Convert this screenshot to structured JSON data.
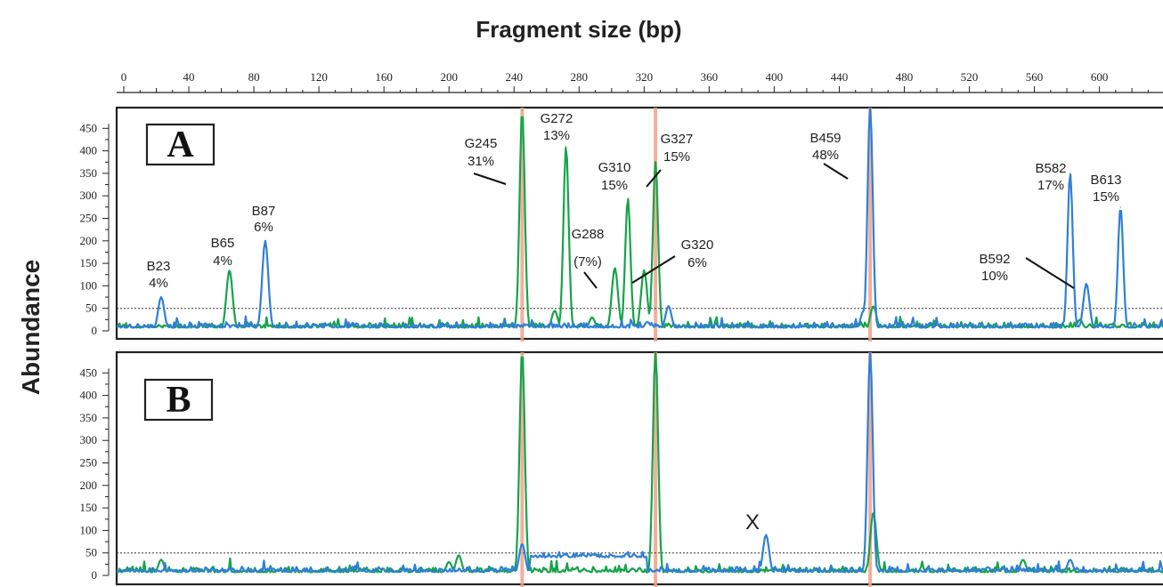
{
  "colors": {
    "blue_series": "#2f7fd6",
    "green_series": "#16a34a",
    "marker_lines": "#f2a18a",
    "threshold_line": "#333333",
    "frame": "#222222"
  },
  "chart_data": {
    "type": "line",
    "title": "Fragment size (bp)",
    "ylabel": "Abundance",
    "xlim": [
      0,
      650
    ],
    "x_ticks": [
      0,
      40,
      80,
      120,
      160,
      200,
      240,
      280,
      320,
      360,
      400,
      440,
      480,
      520,
      560,
      600
    ],
    "x_tick_labels": [
      "0",
      "40",
      "80",
      "120",
      "160",
      "200",
      "240",
      "280",
      "320",
      "360",
      "400",
      "440",
      "480",
      "520",
      "560",
      "600"
    ],
    "ylim": [
      0,
      500
    ],
    "y_ticks": [
      0,
      50,
      100,
      150,
      200,
      250,
      300,
      350,
      400,
      450
    ],
    "y_tick_labels": [
      "0",
      "50",
      "100",
      "150",
      "200",
      "250",
      "300",
      "350",
      "400",
      "450"
    ],
    "threshold": 50,
    "marker_lines_x": [
      245,
      327,
      459
    ],
    "panels": [
      {
        "label": "A",
        "series": [
          {
            "color": "blue",
            "peaks": [
              {
                "x": 23,
                "y": 75
              },
              {
                "x": 87,
                "y": 200
              },
              {
                "x": 322,
                "y": 20
              },
              {
                "x": 335,
                "y": 55
              },
              {
                "x": 455,
                "y": 45
              },
              {
                "x": 459,
                "y": 500
              },
              {
                "x": 582,
                "y": 350
              },
              {
                "x": 592,
                "y": 105
              },
              {
                "x": 613,
                "y": 275
              }
            ]
          },
          {
            "color": "green",
            "peaks": [
              {
                "x": 65,
                "y": 135
              },
              {
                "x": 245,
                "y": 490
              },
              {
                "x": 265,
                "y": 45
              },
              {
                "x": 272,
                "y": 410
              },
              {
                "x": 288,
                "y": 30
              },
              {
                "x": 302,
                "y": 140
              },
              {
                "x": 310,
                "y": 295
              },
              {
                "x": 320,
                "y": 135
              },
              {
                "x": 327,
                "y": 375
              },
              {
                "x": 461,
                "y": 55
              },
              {
                "x": 588,
                "y": 25
              }
            ]
          }
        ],
        "annotations": [
          {
            "label": "B23",
            "pct": "4%"
          },
          {
            "label": "B65",
            "pct": "4%"
          },
          {
            "label": "B87",
            "pct": "6%"
          },
          {
            "label": "G245",
            "pct": "31%"
          },
          {
            "label": "G272",
            "pct": "13%"
          },
          {
            "label": "G310",
            "pct": "15%"
          },
          {
            "label": "G327",
            "pct": "15%"
          },
          {
            "label": "G288",
            "pct": "(7%)"
          },
          {
            "label": "G320",
            "pct": "6%"
          },
          {
            "label": "B459",
            "pct": "48%"
          },
          {
            "label": "B582",
            "pct": "17%"
          },
          {
            "label": "B613",
            "pct": "15%"
          },
          {
            "label": "B592",
            "pct": "10%"
          }
        ]
      },
      {
        "label": "B",
        "series": [
          {
            "color": "blue",
            "peaks": [
              {
                "x": 245,
                "y": 70
              },
              {
                "x": 270,
                "y": 45
              },
              {
                "x": 290,
                "y": 48
              },
              {
                "x": 310,
                "y": 45
              },
              {
                "x": 395,
                "y": 90
              },
              {
                "x": 459,
                "y": 500
              },
              {
                "x": 582,
                "y": 35
              }
            ]
          },
          {
            "color": "green",
            "peaks": [
              {
                "x": 23,
                "y": 35
              },
              {
                "x": 200,
                "y": 30
              },
              {
                "x": 206,
                "y": 45
              },
              {
                "x": 245,
                "y": 500
              },
              {
                "x": 327,
                "y": 500
              },
              {
                "x": 461,
                "y": 140
              },
              {
                "x": 553,
                "y": 35
              }
            ]
          }
        ],
        "annotations": [
          {
            "label": "X",
            "pct": ""
          }
        ]
      }
    ]
  }
}
